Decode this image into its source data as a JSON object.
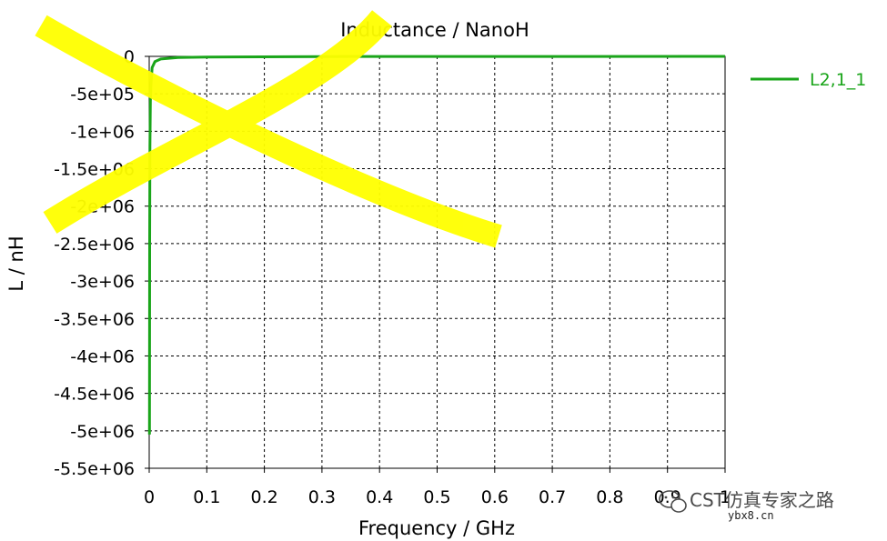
{
  "chart_data": {
    "type": "line",
    "title": "Inductance / NanoH",
    "xlabel": "Frequency / GHz",
    "ylabel": "L / nH",
    "xlim": [
      0,
      1
    ],
    "ylim": [
      -5500000,
      0
    ],
    "xticks": [
      0,
      0.1,
      0.2,
      0.3,
      0.4,
      0.5,
      0.6,
      0.7,
      0.8,
      0.9,
      1
    ],
    "xtick_labels": [
      "0",
      "0.1",
      "0.2",
      "0.3",
      "0.4",
      "0.5",
      "0.6",
      "0.7",
      "0.8",
      "0.9",
      "1"
    ],
    "yticks": [
      0,
      -500000,
      -1000000,
      -1500000,
      -2000000,
      -2500000,
      -3000000,
      -3500000,
      -4000000,
      -4500000,
      -5000000,
      -5500000
    ],
    "ytick_labels": [
      "0",
      "-5e+05",
      "-1e+06",
      "-1.5e+06",
      "-2e+06",
      "-2.5e+06",
      "-3e+06",
      "-3.5e+06",
      "-4e+06",
      "-4.5e+06",
      "-5e+06",
      "-5.5e+06"
    ],
    "grid": true,
    "legend_position": "right",
    "series": [
      {
        "name": "L2,1_1",
        "color": "#1aa51a",
        "x": [
          0.0005,
          0.0008,
          0.0012,
          0.002,
          0.003,
          0.005,
          0.01,
          0.02,
          0.05,
          0.1,
          0.3,
          0.6,
          1.0
        ],
        "y": [
          -5050000,
          -2500000,
          -1200000,
          -600000,
          -380000,
          -150000,
          -70000,
          -35000,
          -15000,
          -8000,
          -2000,
          -800,
          -300
        ]
      }
    ]
  },
  "watermark": {
    "text": "CST仿真专家之路",
    "url": "ybx8.cn"
  }
}
